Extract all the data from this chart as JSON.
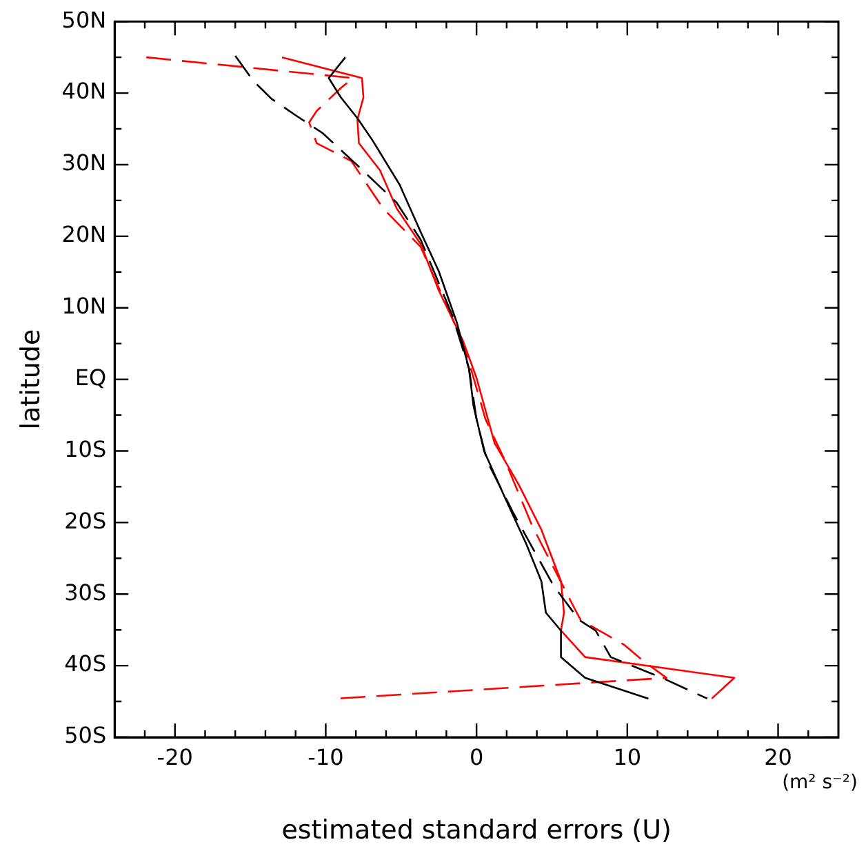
{
  "chart_data": {
    "type": "line",
    "xlabel": "estimated standard errors (U)",
    "ylabel": "latitude",
    "annotations": [
      "(m² s⁻²)"
    ],
    "xlim": [
      -24,
      24
    ],
    "xticks": [
      {
        "value": -24,
        "label": null
      },
      {
        "value": -22,
        "label": null
      },
      -20,
      {
        "value": -18,
        "label": null
      },
      {
        "value": -16,
        "label": null
      },
      {
        "value": -14,
        "label": null
      },
      {
        "value": -12,
        "label": null
      },
      -10,
      {
        "value": -8,
        "label": null
      },
      {
        "value": -6,
        "label": null
      },
      {
        "value": -4,
        "label": null
      },
      {
        "value": -2,
        "label": null
      },
      0,
      {
        "value": 2,
        "label": null
      },
      {
        "value": 4,
        "label": null
      },
      {
        "value": 6,
        "label": null
      },
      {
        "value": 8,
        "label": null
      },
      10,
      {
        "value": 12,
        "label": null
      },
      {
        "value": 14,
        "label": null
      },
      {
        "value": 16,
        "label": null
      },
      {
        "value": 18,
        "label": null
      },
      20,
      {
        "value": 22,
        "label": null
      }
    ],
    "ylim": [
      -50,
      50
    ],
    "yticks": [
      {
        "value": -50,
        "label": "50S"
      },
      {
        "value": -45,
        "label": null
      },
      {
        "value": -40,
        "label": "40S"
      },
      {
        "value": -35,
        "label": null
      },
      {
        "value": -30,
        "label": "30S"
      },
      {
        "value": -25,
        "label": null
      },
      {
        "value": -20,
        "label": "20S"
      },
      {
        "value": -15,
        "label": null
      },
      {
        "value": -10,
        "label": "10S"
      },
      {
        "value": -5,
        "label": null
      },
      {
        "value": 0,
        "label": "EQ"
      },
      {
        "value": 5,
        "label": null
      },
      {
        "value": 10,
        "label": "10N"
      },
      {
        "value": 15,
        "label": null
      },
      {
        "value": 20,
        "label": "20N"
      },
      {
        "value": 25,
        "label": null
      },
      {
        "value": 30,
        "label": "30N"
      },
      {
        "value": 35,
        "label": null
      },
      {
        "value": 40,
        "label": "40N"
      },
      {
        "value": 45,
        "label": null
      },
      {
        "value": 50,
        "label": "50N"
      }
    ],
    "grid": false,
    "legend": false,
    "marker": "none",
    "series": [
      {
        "color": "#000000",
        "line_style": "solid",
        "x": [
          -8.7,
          -9.8,
          -9.0,
          -7.9,
          -6.9,
          -5.1,
          -3.6,
          -2.5,
          -1.3,
          -0.5,
          -0.2,
          0.5,
          1.9,
          3.3,
          4.3,
          4.6,
          5.6,
          5.6,
          7.2,
          11.4
        ],
        "values": [
          45.0,
          42.1,
          39.4,
          36.5,
          33.4,
          27.2,
          20.1,
          15.1,
          7.9,
          1.5,
          -3.7,
          -10,
          -16.6,
          -23,
          -28.2,
          -32.6,
          -35.1,
          -38.8,
          -41.7,
          -44.6
        ]
      },
      {
        "color": "#000000",
        "line_style": "dashed",
        "x": [
          -16.0,
          -14.8,
          -13.6,
          -12.0,
          -10.2,
          -7.8,
          -5.3,
          -3.7,
          -1.6,
          -0.5,
          0,
          0.7,
          2.4,
          3.7,
          5.1,
          6.8,
          7.9,
          8.9,
          12.3,
          15.3
        ],
        "values": [
          45.2,
          41.7,
          39.2,
          36.9,
          34.4,
          29.7,
          24.7,
          19.5,
          8.9,
          1.5,
          -5.6,
          -11.4,
          -18.5,
          -23.5,
          -28.8,
          -33.6,
          -35.1,
          -38.8,
          -41.7,
          -44.6
        ]
      },
      {
        "color": "#ff0000",
        "line_style": "solid",
        "x": [
          -12.9,
          -7.6,
          -7.5,
          -7.9,
          -7.8,
          -6.4,
          -5.3,
          -3.7,
          -2.5,
          -0.9,
          0,
          1.2,
          2.8,
          4.3,
          5.6,
          5.8,
          5.6,
          7.2,
          17.1,
          15.6
        ],
        "values": [
          45.0,
          42.1,
          39.4,
          36.3,
          33.0,
          29.2,
          23.9,
          18.9,
          12.4,
          5.4,
          0.2,
          -8.9,
          -14.7,
          -21,
          -28.2,
          -32.6,
          -35.1,
          -38.8,
          -41.7,
          -44.6
        ]
      },
      {
        "color": "#ff0000",
        "line_style": "dashed",
        "x": [
          -21.9,
          -8.2,
          -9.0,
          -10.6,
          -11.1,
          -10.6,
          -8.3,
          -6.2,
          -3.7,
          -1.6,
          -0.8,
          0.6,
          1.9,
          3.7,
          6.5,
          6.9,
          9.8,
          11.1,
          12.6,
          -9.3
        ],
        "values": [
          45.0,
          42.1,
          40.7,
          37.5,
          35.9,
          33.0,
          30.5,
          23.9,
          18.5,
          8.5,
          4.6,
          -5.6,
          -11.4,
          -20.5,
          -32,
          -33.6,
          -37.1,
          -39.4,
          -41.7,
          -44.6
        ]
      }
    ]
  }
}
